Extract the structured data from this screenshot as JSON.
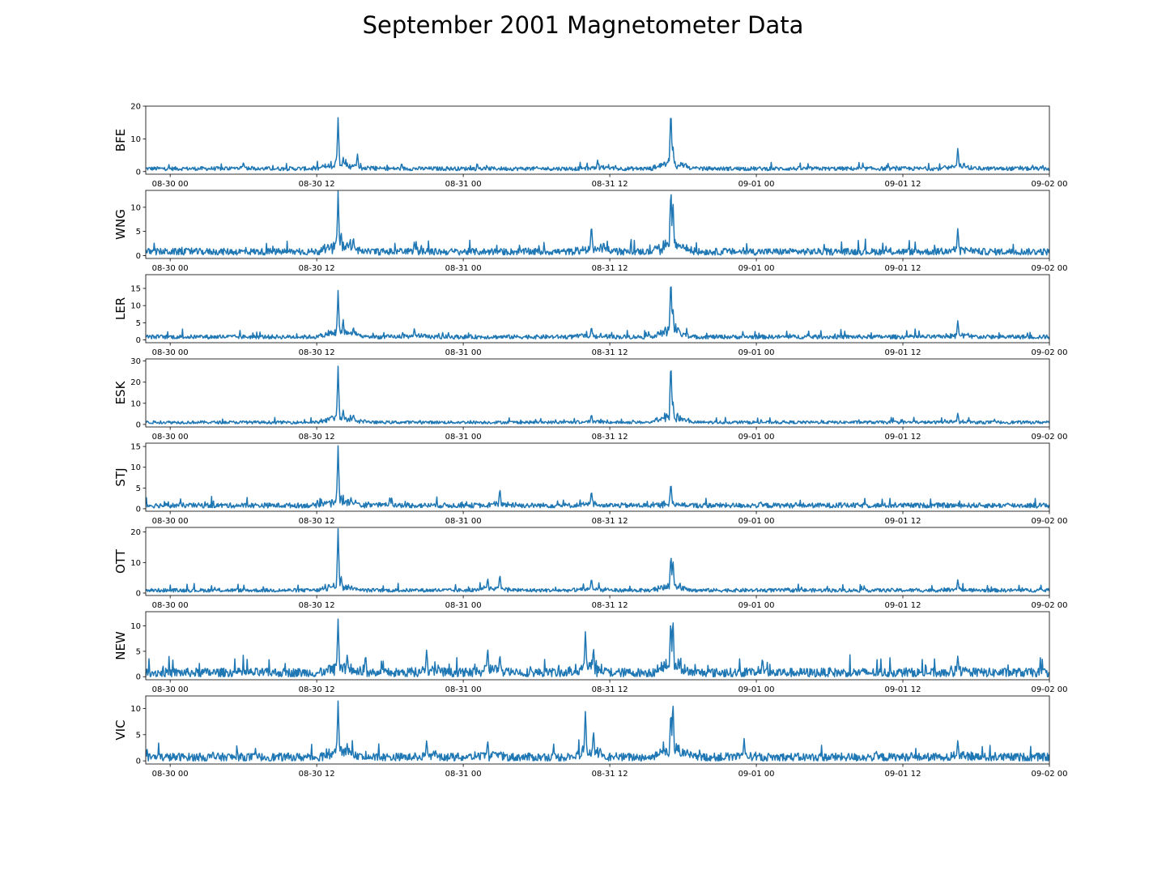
{
  "chart_data": {
    "type": "line",
    "title": "September 2001 Magnetometer Data",
    "x_range": [
      "2001-08-29T22:00",
      "2001-09-02T00:00"
    ],
    "x_tick_labels": [
      "08-30 00",
      "08-30 12",
      "08-31 00",
      "08-31 12",
      "09-01 00",
      "09-01 12",
      "09-02 00"
    ],
    "x_ticks": [
      "2001-08-30T00:00",
      "2001-08-30T12:00",
      "2001-08-31T00:00",
      "2001-08-31T12:00",
      "2001-09-01T00:00",
      "2001-09-01T12:00",
      "2001-09-02T00:00"
    ],
    "line_color": "#1f77b4",
    "subplots": [
      {
        "ylabel": "BFE",
        "ylim": [
          -0.8,
          20
        ],
        "yticks": [
          0,
          10,
          20
        ],
        "baseline": 0.9,
        "noise": 0.6,
        "peaks": [
          [
            "2001-08-30T13:45",
            16.5
          ],
          [
            "2001-08-30T14:10",
            4.5
          ],
          [
            "2001-08-30T15:20",
            5.5
          ],
          [
            "2001-08-30T06:00",
            3
          ],
          [
            "2001-08-31T11:00",
            3.5
          ],
          [
            "2001-08-31T17:00",
            19
          ],
          [
            "2001-08-31T17:10",
            8.5
          ],
          [
            "2001-09-01T16:30",
            7
          ],
          [
            "2001-09-01T17:00",
            3
          ]
        ]
      },
      {
        "ylabel": "WNG",
        "ylim": [
          -0.6,
          13.5
        ],
        "yticks": [
          0,
          5,
          10
        ],
        "baseline": 0.8,
        "noise": 0.7,
        "peaks": [
          [
            "2001-08-30T13:45",
            12.8
          ],
          [
            "2001-08-30T14:00",
            5
          ],
          [
            "2001-08-30T15:00",
            4
          ],
          [
            "2001-08-30T20:00",
            3
          ],
          [
            "2001-08-31T10:30",
            6.5
          ],
          [
            "2001-08-31T11:30",
            3
          ],
          [
            "2001-08-31T17:00",
            13
          ],
          [
            "2001-08-31T17:10",
            12
          ],
          [
            "2001-09-01T16:30",
            5.8
          ]
        ]
      },
      {
        "ylabel": "LER",
        "ylim": [
          -0.8,
          19
        ],
        "yticks": [
          0,
          5,
          10,
          15
        ],
        "baseline": 0.9,
        "noise": 0.6,
        "peaks": [
          [
            "2001-08-30T13:45",
            14
          ],
          [
            "2001-08-30T14:10",
            6
          ],
          [
            "2001-08-30T15:00",
            4
          ],
          [
            "2001-08-30T20:00",
            3.5
          ],
          [
            "2001-08-31T10:30",
            4
          ],
          [
            "2001-08-31T17:00",
            18
          ],
          [
            "2001-08-31T17:10",
            10
          ],
          [
            "2001-09-01T16:30",
            5.8
          ]
        ]
      },
      {
        "ylabel": "ESK",
        "ylim": [
          -1.2,
          31
        ],
        "yticks": [
          0,
          10,
          20,
          30
        ],
        "baseline": 1.0,
        "noise": 0.7,
        "peaks": [
          [
            "2001-08-30T13:45",
            27
          ],
          [
            "2001-08-30T14:10",
            7
          ],
          [
            "2001-08-30T15:00",
            5
          ],
          [
            "2001-08-31T10:30",
            5
          ],
          [
            "2001-08-31T17:00",
            30
          ],
          [
            "2001-08-31T17:10",
            12
          ],
          [
            "2001-09-01T16:30",
            5.5
          ]
        ]
      },
      {
        "ylabel": "STJ",
        "ylim": [
          -0.6,
          15.8
        ],
        "yticks": [
          0,
          5,
          10,
          15
        ],
        "baseline": 0.8,
        "noise": 0.6,
        "peaks": [
          [
            "2001-08-30T13:45",
            15
          ],
          [
            "2001-08-30T14:00",
            3.5
          ],
          [
            "2001-08-31T03:00",
            5
          ],
          [
            "2001-08-31T10:30",
            4.5
          ],
          [
            "2001-08-31T17:00",
            6.5
          ],
          [
            "2001-08-30T18:00",
            3
          ]
        ]
      },
      {
        "ylabel": "OTT",
        "ylim": [
          -0.8,
          21.5
        ],
        "yticks": [
          0,
          10,
          20
        ],
        "baseline": 0.9,
        "noise": 0.6,
        "peaks": [
          [
            "2001-08-30T13:45",
            20.5
          ],
          [
            "2001-08-30T14:00",
            6
          ],
          [
            "2001-08-31T03:00",
            6
          ],
          [
            "2001-08-31T02:00",
            5
          ],
          [
            "2001-08-31T10:30",
            5
          ],
          [
            "2001-08-31T17:00",
            12.5
          ],
          [
            "2001-08-31T17:10",
            11.5
          ],
          [
            "2001-09-01T16:30",
            4.5
          ]
        ]
      },
      {
        "ylabel": "NEW",
        "ylim": [
          -0.6,
          12.8
        ],
        "yticks": [
          0,
          5,
          10
        ],
        "baseline": 0.8,
        "noise": 0.9,
        "peaks": [
          [
            "2001-08-30T13:45",
            11.3
          ],
          [
            "2001-08-30T14:30",
            4.5
          ],
          [
            "2001-08-30T16:00",
            4.5
          ],
          [
            "2001-08-30T21:00",
            5.5
          ],
          [
            "2001-08-31T02:00",
            5.5
          ],
          [
            "2001-08-31T03:00",
            4.5
          ],
          [
            "2001-08-31T10:00",
            8.8
          ],
          [
            "2001-08-31T10:40",
            6
          ],
          [
            "2001-08-31T17:00",
            10.5
          ],
          [
            "2001-08-31T17:10",
            12
          ],
          [
            "2001-09-01T00:30",
            3.8
          ],
          [
            "2001-09-01T16:30",
            4.2
          ]
        ]
      },
      {
        "ylabel": "VIC",
        "ylim": [
          -0.6,
          12.4
        ],
        "yticks": [
          0,
          5,
          10
        ],
        "baseline": 0.7,
        "noise": 0.8,
        "peaks": [
          [
            "2001-08-30T13:45",
            11.3
          ],
          [
            "2001-08-30T14:30",
            3.5
          ],
          [
            "2001-08-30T21:00",
            4
          ],
          [
            "2001-08-31T02:00",
            4
          ],
          [
            "2001-08-31T10:00",
            9.6
          ],
          [
            "2001-08-31T10:40",
            6
          ],
          [
            "2001-08-31T17:00",
            9
          ],
          [
            "2001-08-31T17:10",
            11.8
          ],
          [
            "2001-08-31T23:00",
            4.3
          ],
          [
            "2001-09-01T16:30",
            4
          ]
        ]
      }
    ]
  }
}
